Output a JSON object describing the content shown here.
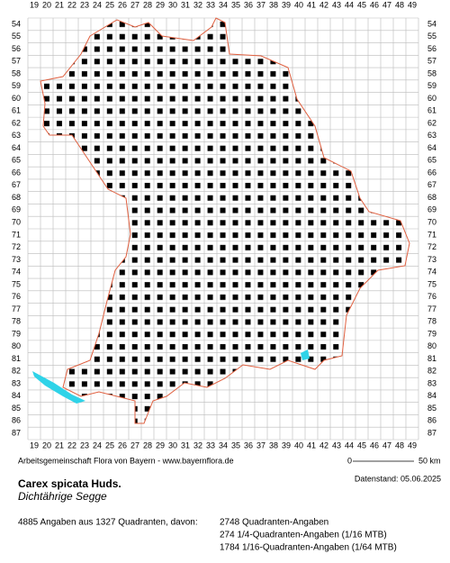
{
  "map": {
    "columns": [
      19,
      20,
      21,
      22,
      23,
      24,
      25,
      26,
      27,
      28,
      29,
      30,
      31,
      32,
      33,
      34,
      35,
      36,
      37,
      38,
      39,
      40,
      41,
      42,
      43,
      44,
      45,
      46,
      47,
      48,
      49
    ],
    "rows": [
      54,
      55,
      56,
      57,
      58,
      59,
      60,
      61,
      62,
      63,
      64,
      65,
      66,
      67,
      68,
      69,
      70,
      71,
      72,
      73,
      74,
      75,
      76,
      77,
      78,
      79,
      80,
      81,
      82,
      83,
      84,
      85,
      86,
      87
    ],
    "credit": "Arbeitsgemeinschaft Flora von Bayern - www.bayernflora.de",
    "scale_start": "0",
    "scale_end": "50 km",
    "date": "Datenstand: 05.06.2025",
    "species": "Carex spicata Huds.",
    "common_name": "Dichtährige Segge",
    "summary": "4885 Angaben aus 1327 Quadranten, davon:",
    "counts": [
      "2748 Quadranten-Angaben",
      "274 1/4-Quadranten-Angaben (1/16 MTB)",
      "1784 1/16-Quadranten-Angaben (1/64 MTB)"
    ]
  }
}
